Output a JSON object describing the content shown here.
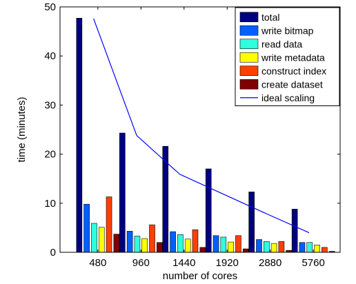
{
  "chart_data": {
    "type": "bar",
    "xlabel": "number of cores",
    "ylabel": "time (minutes)",
    "ylim": [
      0,
      50
    ],
    "yticks": [
      0,
      10,
      20,
      30,
      40,
      50
    ],
    "categories": [
      "480",
      "960",
      "1440",
      "1920",
      "2880",
      "5760"
    ],
    "series": [
      {
        "name": "total",
        "color": "#00007f",
        "values": [
          47.7,
          24.3,
          21.6,
          17.0,
          12.3,
          8.8
        ]
      },
      {
        "name": "write bitmap",
        "color": "#0060ff",
        "values": [
          9.8,
          4.3,
          4.2,
          3.4,
          2.6,
          2.0
        ]
      },
      {
        "name": "read data",
        "color": "#30ffdf",
        "values": [
          5.9,
          3.3,
          3.6,
          3.1,
          2.2,
          2.0
        ]
      },
      {
        "name": "write metadata",
        "color": "#ffff00",
        "values": [
          5.1,
          2.8,
          2.7,
          2.1,
          1.8,
          1.5
        ]
      },
      {
        "name": "construct index",
        "color": "#ff4000",
        "values": [
          11.3,
          5.6,
          4.6,
          3.4,
          2.2,
          1.0
        ]
      },
      {
        "name": "create dataset",
        "color": "#7f0000",
        "values": [
          3.7,
          2.0,
          1.0,
          0.7,
          0.4,
          0.2
        ]
      }
    ],
    "line": {
      "name": "ideal scaling",
      "color": "#0000ff",
      "values": [
        47.6,
        23.8,
        15.9,
        11.9,
        7.9,
        4.0
      ]
    },
    "legend_position": "top-right",
    "grid": false
  }
}
